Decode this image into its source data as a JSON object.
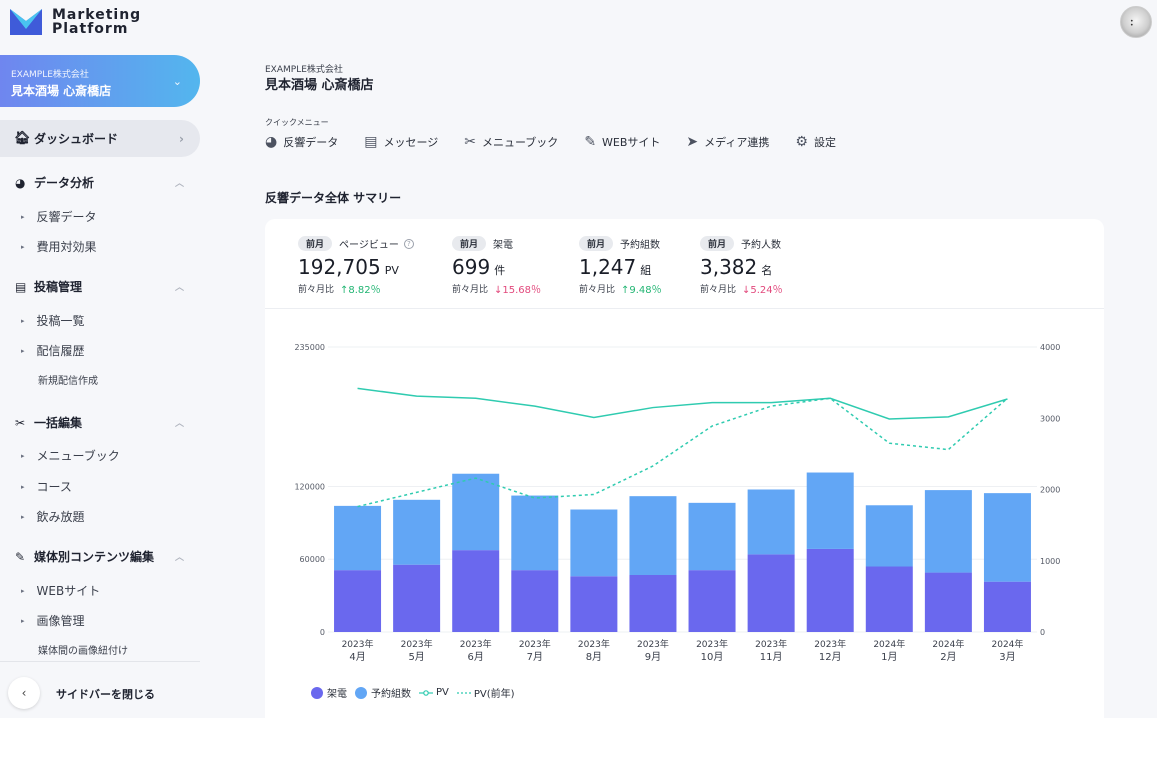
{
  "app": {
    "logo_line1": "Marketing",
    "logo_line2": "Platform"
  },
  "sidebar": {
    "store_company": "EXAMPLE株式会社",
    "store_name": "見本酒場 心斎橋店",
    "dashboard_label": "ダッシュボード",
    "sections": {
      "analysis": {
        "label": "データ分析",
        "items": [
          "反響データ",
          "費用対効果"
        ]
      },
      "posts": {
        "label": "投稿管理",
        "items": [
          "投稿一覧",
          "配信履歴"
        ],
        "sub": "新規配信作成"
      },
      "bulk": {
        "label": "一括編集",
        "items": [
          "メニューブック",
          "コース",
          "飲み放題"
        ]
      },
      "media": {
        "label": "媒体別コンテンツ編集",
        "items": [
          "WEBサイト",
          "画像管理"
        ],
        "sub": "媒体間の画像紐付け"
      }
    },
    "close_label": "サイドバーを閉じる"
  },
  "header": {
    "company": "EXAMPLE株式会社",
    "store": "見本酒場 心斎橋店"
  },
  "quick_menu": {
    "title": "クイックメニュー",
    "items": [
      {
        "label": "反響データ",
        "icon": "pie-chart-icon"
      },
      {
        "label": "メッセージ",
        "icon": "message-icon"
      },
      {
        "label": "メニューブック",
        "icon": "tools-icon"
      },
      {
        "label": "WEBサイト",
        "icon": "edit-icon"
      },
      {
        "label": "メディア連携",
        "icon": "send-icon"
      },
      {
        "label": "設定",
        "icon": "gear-icon"
      }
    ]
  },
  "summary": {
    "title": "反響データ全体 サマリー",
    "kpis": [
      {
        "badge": "前月",
        "label": "ページビュー",
        "value": "192,705",
        "unit": "PV",
        "compare_label": "前々月比",
        "change": "↑8.82％",
        "direction": "up"
      },
      {
        "badge": "前月",
        "label": "架電",
        "value": "699",
        "unit": "件",
        "compare_label": "前々月比",
        "change": "↓15.68％",
        "direction": "down"
      },
      {
        "badge": "前月",
        "label": "予約組数",
        "value": "1,247",
        "unit": "組",
        "compare_label": "前々月比",
        "change": "↑9.48％",
        "direction": "up"
      },
      {
        "badge": "前月",
        "label": "予約人数",
        "value": "3,382",
        "unit": "名",
        "compare_label": "前々月比",
        "change": "↓5.24％",
        "direction": "down"
      }
    ]
  },
  "chart_data": {
    "type": "bar",
    "stacked": true,
    "categories": [
      "2023年\n4月",
      "2023年\n5月",
      "2023年\n6月",
      "2023年\n7月",
      "2023年\n8月",
      "2023年\n9月",
      "2023年\n10月",
      "2023年\n11月",
      "2023年\n12月",
      "2024年\n1月",
      "2024年\n2月",
      "2024年\n3月"
    ],
    "left_axis": {
      "ticks": [
        0,
        60000,
        120000,
        235000
      ],
      "ylim": [
        0,
        235000
      ]
    },
    "right_axis": {
      "ticks": [
        0,
        1000,
        2000,
        3000,
        4000
      ],
      "ylim": [
        0,
        4000
      ]
    },
    "series": [
      {
        "name": "架電",
        "kind": "bar",
        "axis": "left",
        "color": "#6a68ee",
        "values": [
          51000,
          55500,
          67500,
          51000,
          46000,
          47000,
          51000,
          64000,
          68500,
          54000,
          49000,
          41500
        ]
      },
      {
        "name": "予約組数",
        "kind": "bar",
        "axis": "left",
        "color": "#62a6f5",
        "values": [
          53000,
          53500,
          63000,
          61500,
          55000,
          65000,
          55500,
          53500,
          63000,
          50500,
          68000,
          73000
        ]
      },
      {
        "name": "PV",
        "kind": "line",
        "axis": "right",
        "color": "#2fcbb0",
        "values": [
          3420,
          3310,
          3280,
          3170,
          3010,
          3150,
          3220,
          3220,
          3280,
          2990,
          3020,
          3270
        ]
      },
      {
        "name": "PV(前年)",
        "kind": "dashed-line",
        "axis": "right",
        "color": "#2fcbb0",
        "values": [
          1760,
          1960,
          2160,
          1880,
          1930,
          2330,
          2890,
          3170,
          3280,
          2650,
          2560,
          3280
        ]
      }
    ],
    "grid": true,
    "legend_position": "bottom-left"
  }
}
